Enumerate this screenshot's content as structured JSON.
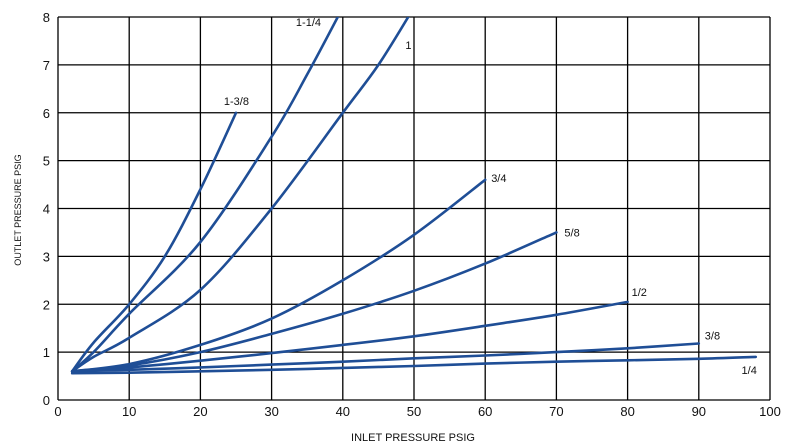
{
  "chart_data": {
    "type": "line",
    "title": "",
    "xlabel": "INLET  PRESSURE PSIG",
    "ylabel": "OUTLET PRESSURE PSIG",
    "xlim": [
      0,
      100
    ],
    "ylim": [
      0,
      8
    ],
    "x_ticks": [
      "0",
      "10",
      "20",
      "30",
      "40",
      "50",
      "60",
      "70",
      "80",
      "90",
      "100"
    ],
    "y_ticks": [
      "0",
      "1",
      "2",
      "3",
      "4",
      "5",
      "6",
      "7",
      "8"
    ],
    "grid": true,
    "series": [
      {
        "name": "1-3/8",
        "x": [
          2,
          5,
          10,
          15,
          20,
          25
        ],
        "y": [
          0.6,
          1.2,
          2.0,
          3.0,
          4.4,
          6.0
        ]
      },
      {
        "name": "1-1/4",
        "x": [
          2,
          5,
          10,
          20,
          30,
          35,
          40
        ],
        "y": [
          0.6,
          1.0,
          1.8,
          3.3,
          5.5,
          6.8,
          8.2
        ]
      },
      {
        "name": "1",
        "x": [
          2,
          5,
          10,
          20,
          30,
          40,
          45,
          50
        ],
        "y": [
          0.6,
          0.9,
          1.3,
          2.3,
          4.0,
          6.0,
          7.0,
          8.2
        ]
      },
      {
        "name": "3/4",
        "x": [
          2,
          10,
          20,
          30,
          40,
          50,
          60
        ],
        "y": [
          0.6,
          0.75,
          1.15,
          1.7,
          2.5,
          3.45,
          4.6
        ]
      },
      {
        "name": "5/8",
        "x": [
          2,
          10,
          20,
          30,
          40,
          50,
          60,
          70
        ],
        "y": [
          0.6,
          0.72,
          1.0,
          1.38,
          1.8,
          2.28,
          2.85,
          3.5
        ]
      },
      {
        "name": "1/2",
        "x": [
          2,
          10,
          20,
          30,
          40,
          50,
          60,
          70,
          80
        ],
        "y": [
          0.6,
          0.68,
          0.82,
          0.98,
          1.15,
          1.33,
          1.55,
          1.78,
          2.05
        ]
      },
      {
        "name": "3/8",
        "x": [
          2,
          10,
          20,
          30,
          40,
          50,
          60,
          70,
          80,
          90
        ],
        "y": [
          0.6,
          0.63,
          0.68,
          0.74,
          0.8,
          0.87,
          0.93,
          1.0,
          1.08,
          1.18
        ]
      },
      {
        "name": "1/4",
        "x": [
          2,
          10,
          20,
          30,
          40,
          50,
          60,
          70,
          80,
          90,
          98
        ],
        "y": [
          0.56,
          0.57,
          0.6,
          0.63,
          0.67,
          0.71,
          0.76,
          0.8,
          0.83,
          0.86,
          0.9
        ]
      }
    ],
    "line_color": "#1f4e96",
    "grid_color": "#000000"
  }
}
